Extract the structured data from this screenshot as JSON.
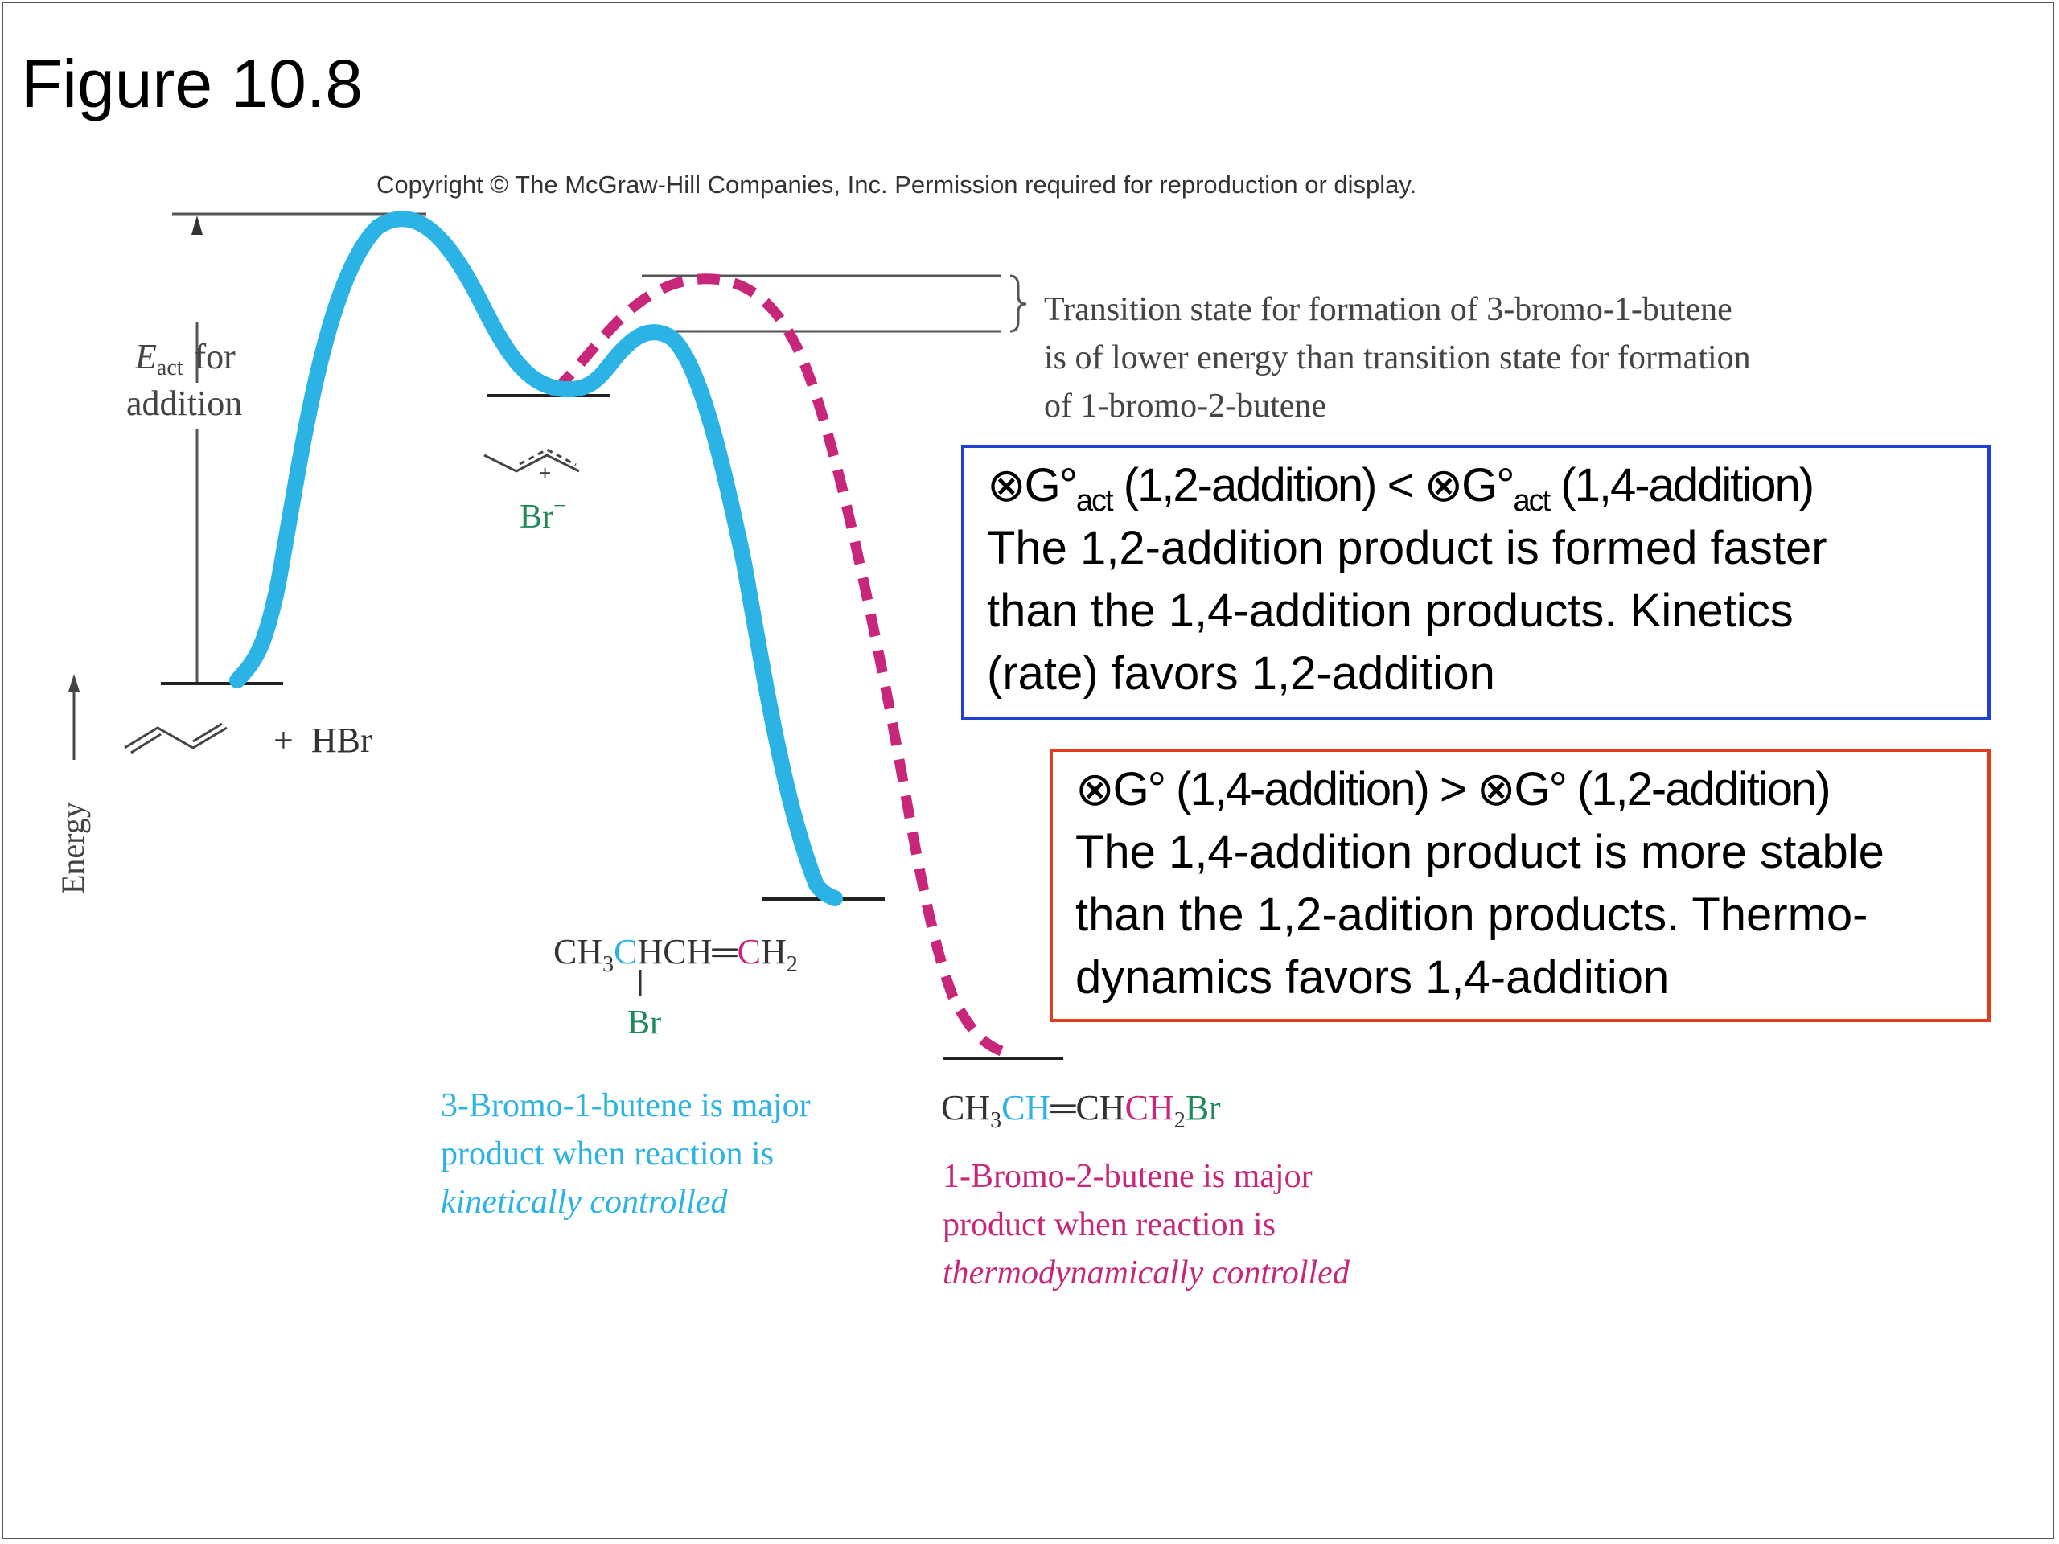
{
  "slide": {
    "title": "Figure 10.8",
    "copyright": "Copyright © The McGraw-Hill Companies, Inc. Permission required for reproduction or display."
  },
  "diagram": {
    "axis_label": "Energy",
    "eact_E": "E",
    "eact_sub": "act",
    "eact_for": "for",
    "eact_addition": "addition",
    "reactants_plus_hbr": "+  HBr",
    "intermediate_plus": "+",
    "intermediate_counterion": "Br",
    "intermediate_charge": "−",
    "ts_note": [
      "Transition state for formation of 3-bromo-1-butene",
      "is of lower energy than transition state for formation",
      "of 1-bromo-2-butene"
    ],
    "product_12": {
      "formula_parts": [
        "CH",
        "3",
        "C",
        "HCH",
        "═",
        "C",
        "H",
        "2"
      ],
      "substituent": "Br",
      "caption": [
        "3-Bromo-1-butene is major",
        "product when reaction is",
        "kinetically controlled"
      ]
    },
    "product_14": {
      "formula_parts": [
        "CH",
        "3",
        "CH",
        "═",
        "CH",
        "CH",
        "2",
        "Br"
      ],
      "caption": [
        "1-Bromo-2-butene is major",
        "product when reaction is",
        "thermodynamically controlled"
      ]
    }
  },
  "box_kinetic": {
    "line1": {
      "a": "⊗G°",
      "sub1": "act",
      "b": " (1,2-addition) < ⊗G°",
      "sub2": "act",
      "c": " (1,4-addition)"
    },
    "line2": "The 1,2-addition product is formed faster",
    "line3": "than the 1,4-addition products. Kinetics",
    "line4": "(rate) favors 1,2-addition"
  },
  "box_thermo": {
    "line1": "⊗G° (1,4-addition) > ⊗G° (1,2-addition)",
    "line2": "The 1,4-addition product is more stable",
    "line3": "than the 1,2-adition products. Thermo-",
    "line4": "dynamics favors 1,4-addition"
  },
  "colors": {
    "kinetic_curve": "#2bb3e6",
    "thermo_curve": "#c8267a",
    "bromine": "#1e8a5a",
    "box_kinetic_border": "#1f3fd6",
    "box_thermo_border": "#e03c1e"
  }
}
